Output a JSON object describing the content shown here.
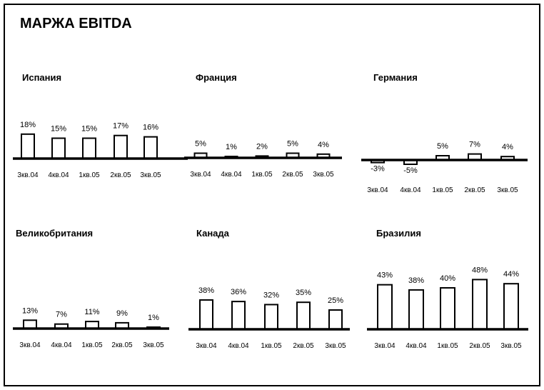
{
  "page": {
    "title": "МАРЖА EBITDA"
  },
  "chart_data": [
    {
      "type": "bar",
      "title": "Испания",
      "categories": [
        "3кв.04",
        "4кв.04",
        "1кв.05",
        "2кв.05",
        "3кв.05"
      ],
      "values": [
        18,
        15,
        15,
        17,
        16
      ],
      "labels": [
        "18%",
        "15%",
        "15%",
        "17%",
        "16%"
      ],
      "xlabel": "",
      "ylabel": "",
      "grid": false,
      "legend": "none"
    },
    {
      "type": "bar",
      "title": "Франция",
      "categories": [
        "3кв.04",
        "4кв.04",
        "1кв.05",
        "2кв.05",
        "3кв.05"
      ],
      "values": [
        5,
        1,
        2,
        5,
        4
      ],
      "labels": [
        "5%",
        "1%",
        "2%",
        "5%",
        "4%"
      ],
      "xlabel": "",
      "ylabel": "",
      "grid": false,
      "legend": "none"
    },
    {
      "type": "bar",
      "title": "Германия",
      "categories": [
        "3кв.04",
        "4кв.04",
        "1кв.05",
        "2кв.05",
        "3кв.05"
      ],
      "values": [
        -3,
        -5,
        5,
        7,
        4
      ],
      "labels": [
        "-3%",
        "-5%",
        "5%",
        "7%",
        "4%"
      ],
      "xlabel": "",
      "ylabel": "",
      "grid": false,
      "legend": "none"
    },
    {
      "type": "bar",
      "title": "Великобритания",
      "categories": [
        "3кв.04",
        "4кв.04",
        "1кв.05",
        "2кв.05",
        "3кв.05"
      ],
      "values": [
        13,
        7,
        11,
        9,
        1
      ],
      "labels": [
        "13%",
        "7%",
        "11%",
        "9%",
        "1%"
      ],
      "xlabel": "",
      "ylabel": "",
      "grid": false,
      "legend": "none"
    },
    {
      "type": "bar",
      "title": "Канада",
      "categories": [
        "3кв.04",
        "4кв.04",
        "1кв.05",
        "2кв.05",
        "3кв.05"
      ],
      "values": [
        38,
        36,
        32,
        35,
        25
      ],
      "labels": [
        "38%",
        "36%",
        "32%",
        "35%",
        "25%"
      ],
      "xlabel": "",
      "ylabel": "",
      "grid": false,
      "legend": "none"
    },
    {
      "type": "bar",
      "title": "Бразилия",
      "categories": [
        "3кв.04",
        "4кв.04",
        "1кв.05",
        "2кв.05",
        "3кв.05"
      ],
      "values": [
        43,
        38,
        40,
        48,
        44
      ],
      "labels": [
        "43%",
        "38%",
        "40%",
        "48%",
        "44%"
      ],
      "xlabel": "",
      "ylabel": "",
      "grid": false,
      "legend": "none"
    }
  ]
}
